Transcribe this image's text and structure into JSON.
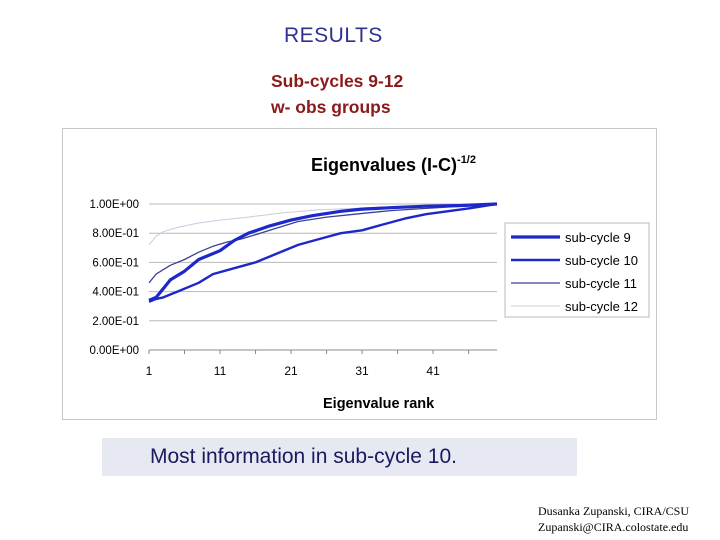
{
  "slide": {
    "title": "RESULTS",
    "subtitle_line1": "Sub-cycles 9-12",
    "subtitle_line2": "w- obs groups",
    "callout": "Most information in sub-cycle 10.",
    "credit_line1": "Dusanka Zupanski, CIRA/CSU",
    "credit_line2": "Zupanski@CIRA.colostate.edu"
  },
  "colors": {
    "title": "#2e3192",
    "subtitle": "#8b1a1a",
    "callout_bg": "#e6e8f2",
    "series": [
      "#1c28c8",
      "#1c28c8",
      "#3a3f9a",
      "#c8cce0"
    ]
  },
  "chart_data": {
    "type": "line",
    "title": "Eigenvalues (I-C)",
    "title_superscript": "-1/2",
    "xlabel": "Eigenvalue rank",
    "ylabel": "",
    "xlim": [
      1,
      50
    ],
    "ylim": [
      0,
      1
    ],
    "x_ticks": [
      1,
      11,
      21,
      31,
      41
    ],
    "y_ticks": [
      0,
      0.2,
      0.4,
      0.6,
      0.8,
      1.0
    ],
    "y_tick_labels": [
      "0.00E+00",
      "2.00E-01",
      "4.00E-01",
      "6.00E-01",
      "8.00E-01",
      "1.00E+00"
    ],
    "grid": "horizontal",
    "legend_position": "right",
    "series": [
      {
        "name": "sub-cycle 9",
        "x": [
          1,
          2,
          3,
          4,
          6,
          8,
          11,
          13,
          15,
          18,
          21,
          24,
          28,
          31,
          35,
          40,
          45,
          50
        ],
        "y": [
          0.34,
          0.36,
          0.42,
          0.48,
          0.54,
          0.62,
          0.68,
          0.75,
          0.8,
          0.85,
          0.89,
          0.92,
          0.95,
          0.965,
          0.975,
          0.985,
          0.99,
          1.0
        ]
      },
      {
        "name": "sub-cycle 10",
        "x": [
          1,
          2,
          3,
          5,
          8,
          10,
          13,
          16,
          19,
          22,
          25,
          28,
          31,
          34,
          37,
          40,
          43,
          46,
          50
        ],
        "y": [
          0.33,
          0.35,
          0.36,
          0.4,
          0.46,
          0.52,
          0.56,
          0.6,
          0.66,
          0.72,
          0.76,
          0.8,
          0.82,
          0.86,
          0.9,
          0.93,
          0.95,
          0.97,
          1.0
        ]
      },
      {
        "name": "sub-cycle 11",
        "x": [
          1,
          2,
          4,
          6,
          8,
          10,
          12,
          14,
          16,
          18,
          20,
          22,
          26,
          30,
          35,
          40,
          45,
          50
        ],
        "y": [
          0.46,
          0.52,
          0.58,
          0.62,
          0.67,
          0.71,
          0.74,
          0.76,
          0.79,
          0.82,
          0.85,
          0.88,
          0.91,
          0.93,
          0.955,
          0.97,
          0.985,
          1.0
        ]
      },
      {
        "name": "sub-cycle 12",
        "x": [
          1,
          2,
          3,
          5,
          8,
          11,
          15,
          20,
          25,
          30,
          35,
          40,
          45,
          50
        ],
        "y": [
          0.72,
          0.78,
          0.81,
          0.84,
          0.87,
          0.89,
          0.91,
          0.94,
          0.96,
          0.97,
          0.98,
          0.99,
          0.995,
          1.0
        ]
      }
    ]
  }
}
